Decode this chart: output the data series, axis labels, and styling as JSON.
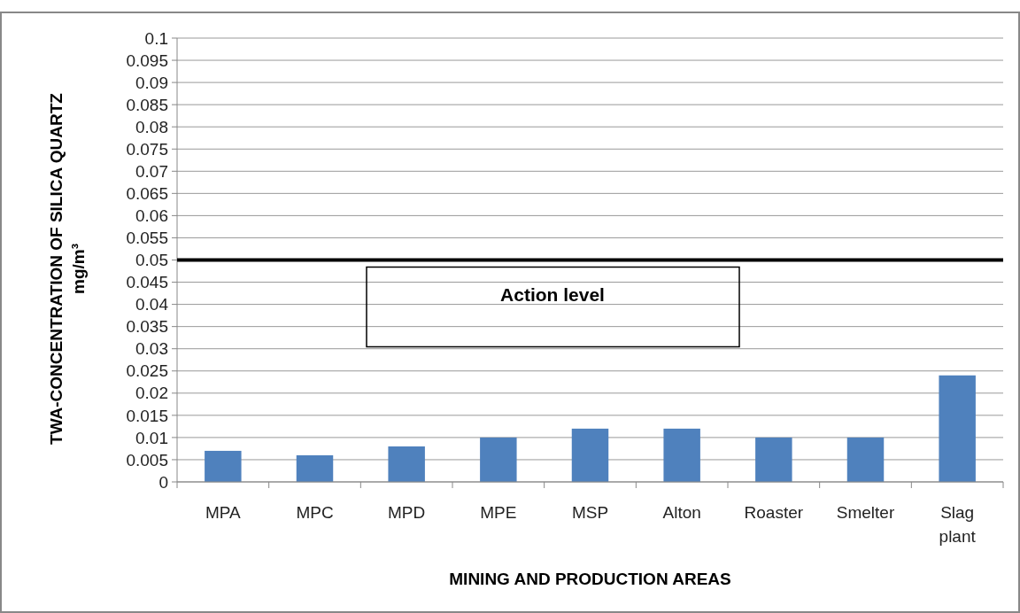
{
  "chart_data": {
    "type": "bar",
    "xlabel": "MINING AND PRODUCTION AREAS",
    "ylabel": "TWA-CONCENTRATION OF SILICA QUARTZ\nmg/m³",
    "categories": [
      "MPA",
      "MPC",
      "MPD",
      "MPE",
      "MSP",
      "Alton",
      "Roaster",
      "Smelter",
      "Slag plant"
    ],
    "values": [
      0.007,
      0.006,
      0.008,
      0.01,
      0.012,
      0.012,
      0.01,
      0.01,
      0.024
    ],
    "color": "#4f81bd",
    "ylim": [
      0,
      0.1
    ],
    "yticks": [
      0,
      0.005,
      0.01,
      0.015,
      0.02,
      0.025,
      0.03,
      0.035,
      0.04,
      0.045,
      0.05,
      0.055,
      0.06,
      0.065,
      0.07,
      0.075,
      0.08,
      0.085,
      0.09,
      0.095,
      0.1
    ],
    "grid": "y",
    "ref_lines": [
      {
        "axis": "y",
        "value": 0.05,
        "label": "Action level",
        "color": "#000000",
        "line_style": "solid"
      }
    ]
  }
}
